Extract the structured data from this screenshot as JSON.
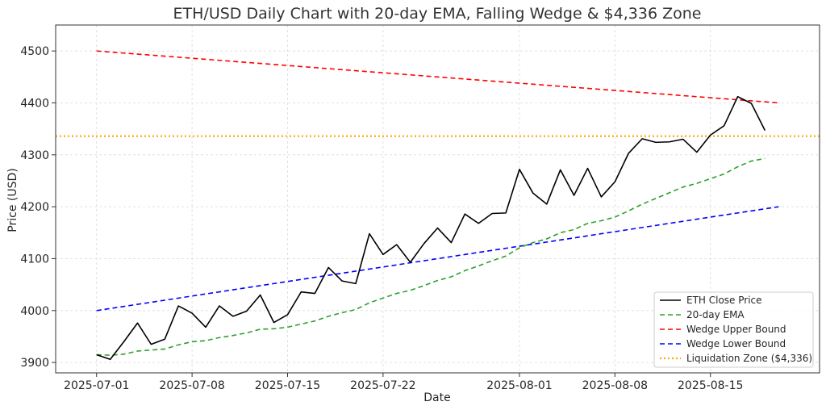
{
  "chart_data": {
    "type": "line",
    "title": "ETH/USD Daily Chart with 20-day EMA, Falling Wedge & $4,336 Zone",
    "xlabel": "Date",
    "ylabel": "Price (USD)",
    "x_start": "2025-07-01",
    "x_end": "2025-08-20",
    "xlim": [
      "2025-06-28",
      "2025-08-23"
    ],
    "ylim": [
      3880,
      4550
    ],
    "x_ticks": [
      "2025-07-01",
      "2025-07-08",
      "2025-07-15",
      "2025-07-22",
      "2025-08-01",
      "2025-08-08",
      "2025-08-15"
    ],
    "y_ticks": [
      3900,
      4000,
      4100,
      4200,
      4300,
      4400,
      4500
    ],
    "grid": true,
    "legend_position": "lower-right",
    "dates": [
      "2025-07-01",
      "2025-07-02",
      "2025-07-03",
      "2025-07-04",
      "2025-07-05",
      "2025-07-06",
      "2025-07-07",
      "2025-07-08",
      "2025-07-09",
      "2025-07-10",
      "2025-07-11",
      "2025-07-12",
      "2025-07-13",
      "2025-07-14",
      "2025-07-15",
      "2025-07-16",
      "2025-07-17",
      "2025-07-18",
      "2025-07-19",
      "2025-07-20",
      "2025-07-21",
      "2025-07-22",
      "2025-07-23",
      "2025-07-24",
      "2025-07-25",
      "2025-07-26",
      "2025-07-27",
      "2025-07-28",
      "2025-07-29",
      "2025-07-30",
      "2025-07-31",
      "2025-08-01",
      "2025-08-02",
      "2025-08-03",
      "2025-08-04",
      "2025-08-05",
      "2025-08-06",
      "2025-08-07",
      "2025-08-08",
      "2025-08-09",
      "2025-08-10",
      "2025-08-11",
      "2025-08-12",
      "2025-08-13",
      "2025-08-14",
      "2025-08-15",
      "2025-08-16",
      "2025-08-17",
      "2025-08-18",
      "2025-08-19",
      "2025-08-20"
    ],
    "series": [
      {
        "name": "ETH Close Price",
        "color": "#000000",
        "style": "solid",
        "values": [
          3915,
          3906,
          3940,
          3976,
          3935,
          3945,
          4009,
          3995,
          3968,
          4009,
          3989,
          3999,
          4030,
          3977,
          3992,
          4036,
          4033,
          4083,
          4057,
          4052,
          4148,
          4108,
          4127,
          4093,
          4129,
          4159,
          4131,
          4186,
          4168,
          4187,
          4188,
          4272,
          4226,
          4205,
          4271,
          4222,
          4274,
          4219,
          4248,
          4303,
          4331,
          4324,
          4325,
          4330,
          4305,
          4338,
          4356,
          4412,
          4399,
          4347,
          null
        ]
      },
      {
        "name": "20-day EMA",
        "color": "#2ca02c",
        "style": "dashed",
        "values": [
          3915,
          3914,
          3916,
          3922,
          3924,
          3926,
          3934,
          3940,
          3942,
          3948,
          3952,
          3957,
          3964,
          3965,
          3968,
          3974,
          3980,
          3989,
          3996,
          4002,
          4015,
          4024,
          4033,
          4039,
          4048,
          4058,
          4065,
          4077,
          4086,
          4096,
          4105,
          4121,
          4131,
          4138,
          4150,
          4156,
          4168,
          4173,
          4180,
          4192,
          4205,
          4216,
          4227,
          4238,
          4245,
          4254,
          4263,
          4277,
          4288,
          4293,
          null
        ]
      },
      {
        "name": "Wedge Upper Bound",
        "color": "#ff0000",
        "style": "dashed",
        "values": [
          4500,
          4498,
          4496,
          4494,
          4492,
          4490,
          4488,
          4486,
          4484,
          4482,
          4480,
          4478,
          4476,
          4474,
          4472,
          4470,
          4468,
          4466,
          4464,
          4462,
          4460,
          4458,
          4456,
          4454,
          4452,
          4450,
          4448,
          4446,
          4444,
          4442,
          4440,
          4438,
          4436,
          4434,
          4432,
          4430,
          4428,
          4426,
          4424,
          4422,
          4420,
          4418,
          4416,
          4414,
          4412,
          4410,
          4408,
          4406,
          4404,
          4402,
          4400
        ]
      },
      {
        "name": "Wedge Lower Bound",
        "color": "#0000ff",
        "style": "dashed",
        "values": [
          4000,
          4004,
          4008,
          4012,
          4016,
          4020,
          4024,
          4028,
          4032,
          4036,
          4040,
          4044,
          4048,
          4052,
          4056,
          4060,
          4064,
          4068,
          4072,
          4076,
          4080,
          4084,
          4088,
          4092,
          4096,
          4100,
          4104,
          4108,
          4112,
          4116,
          4120,
          4124,
          4128,
          4132,
          4136,
          4140,
          4144,
          4148,
          4152,
          4156,
          4160,
          4164,
          4168,
          4172,
          4176,
          4180,
          4184,
          4188,
          4192,
          4196,
          4200
        ]
      }
    ],
    "hline": {
      "name": "Liquidation Zone ($4,336)",
      "value": 4336,
      "color": "#ffa500",
      "style": "dotted"
    }
  }
}
